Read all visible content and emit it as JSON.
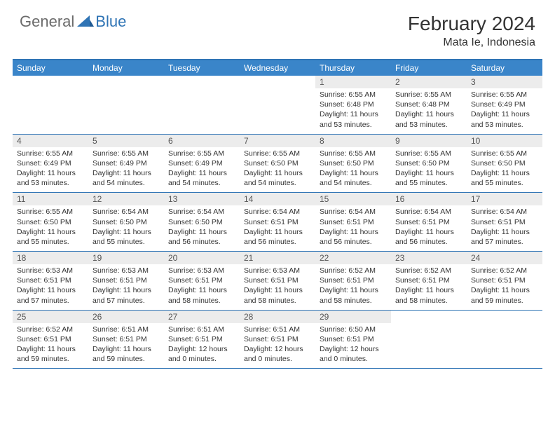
{
  "logo": {
    "general": "General",
    "blue": "Blue"
  },
  "header": {
    "month": "February 2024",
    "location": "Mata Ie, Indonesia"
  },
  "colors": {
    "accent": "#2f74b5",
    "header_bar": "#3a85c9",
    "daynum_bg": "#ececec",
    "text": "#333333",
    "logo_gray": "#6b6b6b"
  },
  "days_of_week": [
    "Sunday",
    "Monday",
    "Tuesday",
    "Wednesday",
    "Thursday",
    "Friday",
    "Saturday"
  ],
  "weeks": [
    [
      null,
      null,
      null,
      null,
      {
        "n": "1",
        "sunrise": "6:55 AM",
        "sunset": "6:48 PM",
        "day_h": "11",
        "day_m": "53"
      },
      {
        "n": "2",
        "sunrise": "6:55 AM",
        "sunset": "6:48 PM",
        "day_h": "11",
        "day_m": "53"
      },
      {
        "n": "3",
        "sunrise": "6:55 AM",
        "sunset": "6:49 PM",
        "day_h": "11",
        "day_m": "53"
      }
    ],
    [
      {
        "n": "4",
        "sunrise": "6:55 AM",
        "sunset": "6:49 PM",
        "day_h": "11",
        "day_m": "53"
      },
      {
        "n": "5",
        "sunrise": "6:55 AM",
        "sunset": "6:49 PM",
        "day_h": "11",
        "day_m": "54"
      },
      {
        "n": "6",
        "sunrise": "6:55 AM",
        "sunset": "6:49 PM",
        "day_h": "11",
        "day_m": "54"
      },
      {
        "n": "7",
        "sunrise": "6:55 AM",
        "sunset": "6:50 PM",
        "day_h": "11",
        "day_m": "54"
      },
      {
        "n": "8",
        "sunrise": "6:55 AM",
        "sunset": "6:50 PM",
        "day_h": "11",
        "day_m": "54"
      },
      {
        "n": "9",
        "sunrise": "6:55 AM",
        "sunset": "6:50 PM",
        "day_h": "11",
        "day_m": "55"
      },
      {
        "n": "10",
        "sunrise": "6:55 AM",
        "sunset": "6:50 PM",
        "day_h": "11",
        "day_m": "55"
      }
    ],
    [
      {
        "n": "11",
        "sunrise": "6:55 AM",
        "sunset": "6:50 PM",
        "day_h": "11",
        "day_m": "55"
      },
      {
        "n": "12",
        "sunrise": "6:54 AM",
        "sunset": "6:50 PM",
        "day_h": "11",
        "day_m": "55"
      },
      {
        "n": "13",
        "sunrise": "6:54 AM",
        "sunset": "6:50 PM",
        "day_h": "11",
        "day_m": "56"
      },
      {
        "n": "14",
        "sunrise": "6:54 AM",
        "sunset": "6:51 PM",
        "day_h": "11",
        "day_m": "56"
      },
      {
        "n": "15",
        "sunrise": "6:54 AM",
        "sunset": "6:51 PM",
        "day_h": "11",
        "day_m": "56"
      },
      {
        "n": "16",
        "sunrise": "6:54 AM",
        "sunset": "6:51 PM",
        "day_h": "11",
        "day_m": "56"
      },
      {
        "n": "17",
        "sunrise": "6:54 AM",
        "sunset": "6:51 PM",
        "day_h": "11",
        "day_m": "57"
      }
    ],
    [
      {
        "n": "18",
        "sunrise": "6:53 AM",
        "sunset": "6:51 PM",
        "day_h": "11",
        "day_m": "57"
      },
      {
        "n": "19",
        "sunrise": "6:53 AM",
        "sunset": "6:51 PM",
        "day_h": "11",
        "day_m": "57"
      },
      {
        "n": "20",
        "sunrise": "6:53 AM",
        "sunset": "6:51 PM",
        "day_h": "11",
        "day_m": "58"
      },
      {
        "n": "21",
        "sunrise": "6:53 AM",
        "sunset": "6:51 PM",
        "day_h": "11",
        "day_m": "58"
      },
      {
        "n": "22",
        "sunrise": "6:52 AM",
        "sunset": "6:51 PM",
        "day_h": "11",
        "day_m": "58"
      },
      {
        "n": "23",
        "sunrise": "6:52 AM",
        "sunset": "6:51 PM",
        "day_h": "11",
        "day_m": "58"
      },
      {
        "n": "24",
        "sunrise": "6:52 AM",
        "sunset": "6:51 PM",
        "day_h": "11",
        "day_m": "59"
      }
    ],
    [
      {
        "n": "25",
        "sunrise": "6:52 AM",
        "sunset": "6:51 PM",
        "day_h": "11",
        "day_m": "59"
      },
      {
        "n": "26",
        "sunrise": "6:51 AM",
        "sunset": "6:51 PM",
        "day_h": "11",
        "day_m": "59"
      },
      {
        "n": "27",
        "sunrise": "6:51 AM",
        "sunset": "6:51 PM",
        "day_h": "12",
        "day_m": "0"
      },
      {
        "n": "28",
        "sunrise": "6:51 AM",
        "sunset": "6:51 PM",
        "day_h": "12",
        "day_m": "0"
      },
      {
        "n": "29",
        "sunrise": "6:50 AM",
        "sunset": "6:51 PM",
        "day_h": "12",
        "day_m": "0"
      },
      null,
      null
    ]
  ],
  "labels": {
    "sunrise": "Sunrise:",
    "sunset": "Sunset:",
    "daylight_prefix": "Daylight:",
    "hours_word": "hours",
    "and_word": "and",
    "minutes_word": "minutes."
  }
}
